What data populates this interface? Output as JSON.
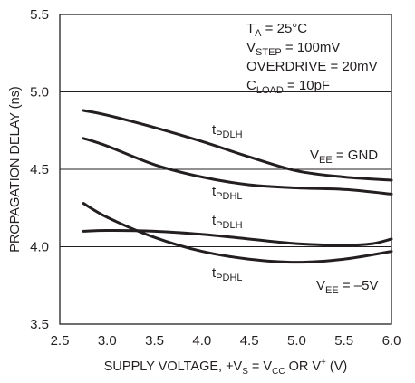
{
  "chart_data": {
    "type": "line",
    "title": "",
    "xlabel": {
      "base": "SUPPLY VOLTAGE, +V",
      "sub1": "S",
      "mid": " = V",
      "sub2": "CC",
      "rest1": " OR V",
      "sup": "+",
      "rest2": " (V)"
    },
    "ylabel": "PROPAGATION DELAY (ns)",
    "xlim": [
      2.5,
      6.0
    ],
    "ylim": [
      3.5,
      5.5
    ],
    "xticks": [
      "2.5",
      "3.0",
      "3.5",
      "4.0",
      "4.5",
      "5.0",
      "5.5",
      "6.0"
    ],
    "yticks": [
      "3.5",
      "4.0",
      "4.5",
      "5.0",
      "5.5"
    ],
    "grid": true,
    "conditions": [
      {
        "main": "T",
        "sub": "A",
        "rest": " = 25°C"
      },
      {
        "main": "V",
        "sub": "STEP",
        "rest": " = 100mV"
      },
      {
        "main": "OVERDRIVE = 20mV",
        "sub": "",
        "rest": ""
      },
      {
        "main": "C",
        "sub": "LOAD",
        "rest": " = 10pF"
      }
    ],
    "group_labels": [
      {
        "main": "V",
        "sub": "EE",
        "rest": " = GND"
      },
      {
        "main": "V",
        "sub": "EE",
        "rest": " = –5V"
      }
    ],
    "series": [
      {
        "name": "tPDLH",
        "label_main": "t",
        "label_sub": "PDLH",
        "group": "V EE = GND",
        "x": [
          2.75,
          3.0,
          3.5,
          4.0,
          4.5,
          5.0,
          5.5,
          6.0
        ],
        "y": [
          4.88,
          4.85,
          4.77,
          4.68,
          4.58,
          4.49,
          4.45,
          4.43
        ]
      },
      {
        "name": "tPDHL",
        "label_main": "t",
        "label_sub": "PDHL",
        "group": "V EE = GND",
        "x": [
          2.75,
          3.0,
          3.5,
          4.0,
          4.5,
          5.0,
          5.5,
          6.0
        ],
        "y": [
          4.7,
          4.65,
          4.53,
          4.45,
          4.4,
          4.38,
          4.37,
          4.34
        ]
      },
      {
        "name": "tPDLH",
        "label_main": "t",
        "label_sub": "PDLH",
        "group": "V EE = –5V",
        "x": [
          2.75,
          3.0,
          3.5,
          4.0,
          4.5,
          5.0,
          5.5,
          5.8,
          6.0
        ],
        "y": [
          4.1,
          4.105,
          4.1,
          4.08,
          4.05,
          4.02,
          4.01,
          4.02,
          4.05
        ]
      },
      {
        "name": "tPDHL",
        "label_main": "t",
        "label_sub": "PDHL",
        "group": "V EE = –5V",
        "x": [
          2.75,
          3.0,
          3.5,
          4.0,
          4.5,
          5.0,
          5.5,
          6.0
        ],
        "y": [
          4.28,
          4.19,
          4.06,
          3.97,
          3.92,
          3.9,
          3.92,
          3.97
        ]
      }
    ]
  }
}
